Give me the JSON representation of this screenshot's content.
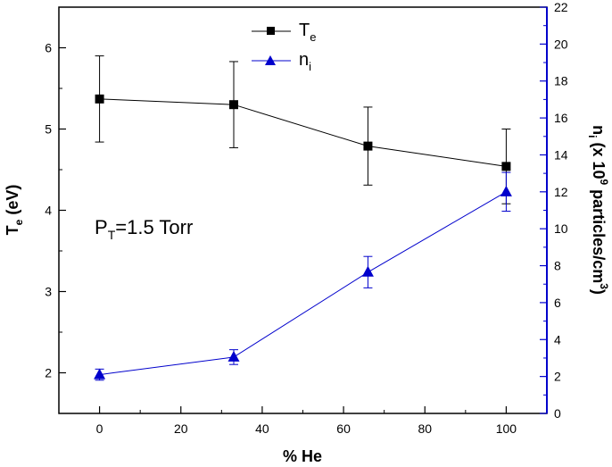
{
  "chart_data": {
    "type": "line",
    "title": "",
    "xlabel": "% He",
    "ylabel_left": {
      "main": "T",
      "sub": "e",
      "unit": " (eV)"
    },
    "ylabel_right": {
      "main": "n",
      "sub": "i",
      "unit_pre": " (x 10",
      "exp": "9",
      "unit_mid": " particles/cm",
      "exp2": "3",
      "unit_post": ")"
    },
    "xlim": [
      -10,
      110
    ],
    "ylim_left": [
      1.5,
      6.5
    ],
    "ylim_right": [
      0,
      22
    ],
    "xticks": [
      0,
      20,
      40,
      60,
      80,
      100
    ],
    "yticks_left": [
      2,
      3,
      4,
      5,
      6
    ],
    "yticks_right": [
      0,
      2,
      4,
      6,
      8,
      10,
      12,
      14,
      16,
      18,
      20,
      22
    ],
    "annotation": {
      "main": "P",
      "sub": "T",
      "rest": "=1.5 Torr"
    },
    "colors": {
      "te": "#000000",
      "ni": "#0000cc",
      "right_axis": "#0000cc"
    },
    "legend_position": "top-center",
    "series": [
      {
        "name": "Te",
        "legend": {
          "main": "T",
          "sub": "e"
        },
        "axis": "left",
        "marker": "square",
        "x": [
          0,
          33,
          66,
          100
        ],
        "y": [
          5.37,
          5.3,
          4.79,
          4.54
        ],
        "err": [
          0.53,
          0.53,
          0.48,
          0.46
        ]
      },
      {
        "name": "ni",
        "legend": {
          "main": "n",
          "sub": "i"
        },
        "axis": "right",
        "marker": "triangle",
        "x": [
          0,
          33,
          66,
          100
        ],
        "y": [
          2.1,
          3.05,
          7.65,
          12.0
        ],
        "err": [
          0.3,
          0.4,
          0.85,
          1.05
        ]
      }
    ]
  }
}
